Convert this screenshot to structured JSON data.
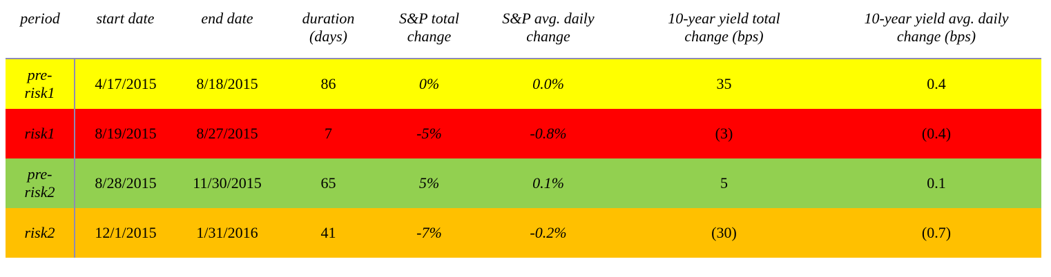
{
  "colors": {
    "pre_risk1": "#ffff00",
    "risk1": "#ff0000",
    "pre_risk2": "#92d050",
    "risk2": "#ffc000",
    "header_rule": "#8e8bb5"
  },
  "headers": {
    "period": "period",
    "start_date": "start date",
    "end_date": "end date",
    "duration_line1": "duration",
    "duration_line2": "(days)",
    "sp_total_line1": "S&P total",
    "sp_total_line2": "change",
    "sp_avg_line1": "S&P avg. daily",
    "sp_avg_line2": "change",
    "yield_total_line1": "10-year yield total",
    "yield_total_line2": "change (bps)",
    "yield_avg_line1": "10-year yield avg. daily",
    "yield_avg_line2": "change (bps)"
  },
  "rows": [
    {
      "period_line1": "pre-",
      "period_line2": "risk1",
      "start_date": "4/17/2015",
      "end_date": "8/18/2015",
      "duration": "86",
      "sp_total": "0%",
      "sp_avg": "0.0%",
      "yield_total": "35",
      "yield_avg": "0.4"
    },
    {
      "period_line1": "risk1",
      "period_line2": "",
      "start_date": "8/19/2015",
      "end_date": "8/27/2015",
      "duration": "7",
      "sp_total": "-5%",
      "sp_avg": "-0.8%",
      "yield_total": "(3)",
      "yield_avg": "(0.4)"
    },
    {
      "period_line1": "pre-",
      "period_line2": "risk2",
      "start_date": "8/28/2015",
      "end_date": "11/30/2015",
      "duration": "65",
      "sp_total": "5%",
      "sp_avg": "0.1%",
      "yield_total": "5",
      "yield_avg": "0.1"
    },
    {
      "period_line1": "risk2",
      "period_line2": "",
      "start_date": "12/1/2015",
      "end_date": "1/31/2016",
      "duration": "41",
      "sp_total": "-7%",
      "sp_avg": "-0.2%",
      "yield_total": "(30)",
      "yield_avg": "(0.7)"
    }
  ]
}
